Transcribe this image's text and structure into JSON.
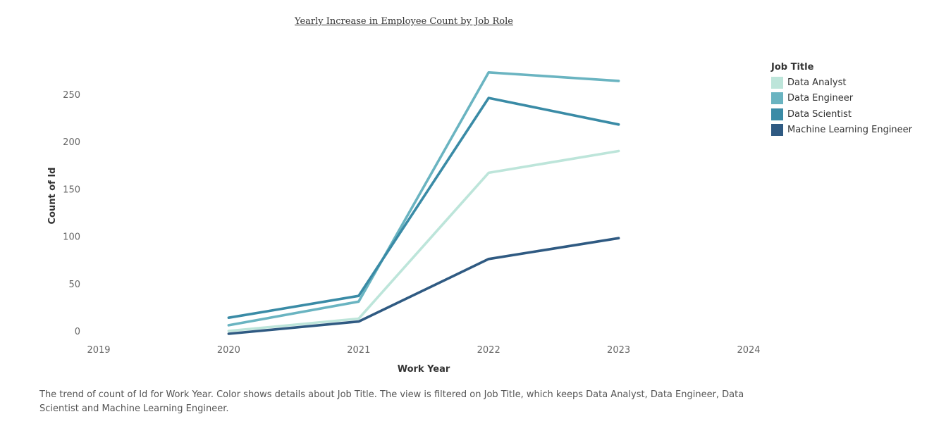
{
  "chart_data": {
    "type": "line",
    "title": "Yearly Increase in Employee Count by Job Role",
    "xlabel": "Work Year",
    "ylabel": "Count of Id",
    "x_ticks": [
      2019,
      2020,
      2021,
      2022,
      2023,
      2024
    ],
    "y_ticks": [
      0,
      50,
      100,
      150,
      200,
      250
    ],
    "xlim": [
      2019,
      2024
    ],
    "ylim": [
      0,
      280
    ],
    "x": [
      2020,
      2021,
      2022,
      2023
    ],
    "legend": {
      "title": "Job Title",
      "position": "right"
    },
    "series": [
      {
        "name": "Data Analyst",
        "color": "#bde5da",
        "values": [
          0,
          13,
          167,
          190
        ]
      },
      {
        "name": "Data Engineer",
        "color": "#6ab4c1",
        "values": [
          6,
          31,
          273,
          264
        ]
      },
      {
        "name": "Data Scientist",
        "color": "#3a8ba6",
        "values": [
          14,
          37,
          246,
          218
        ]
      },
      {
        "name": "Machine Learning Engineer",
        "color": "#2f5a82",
        "values": [
          -3,
          10,
          76,
          98
        ]
      }
    ],
    "grid": false,
    "caption": "The trend of count of Id for Work Year.  Color shows details about Job Title. The view is filtered on Job Title, which keeps Data Analyst, Data Engineer, Data Scientist and Machine Learning Engineer."
  }
}
